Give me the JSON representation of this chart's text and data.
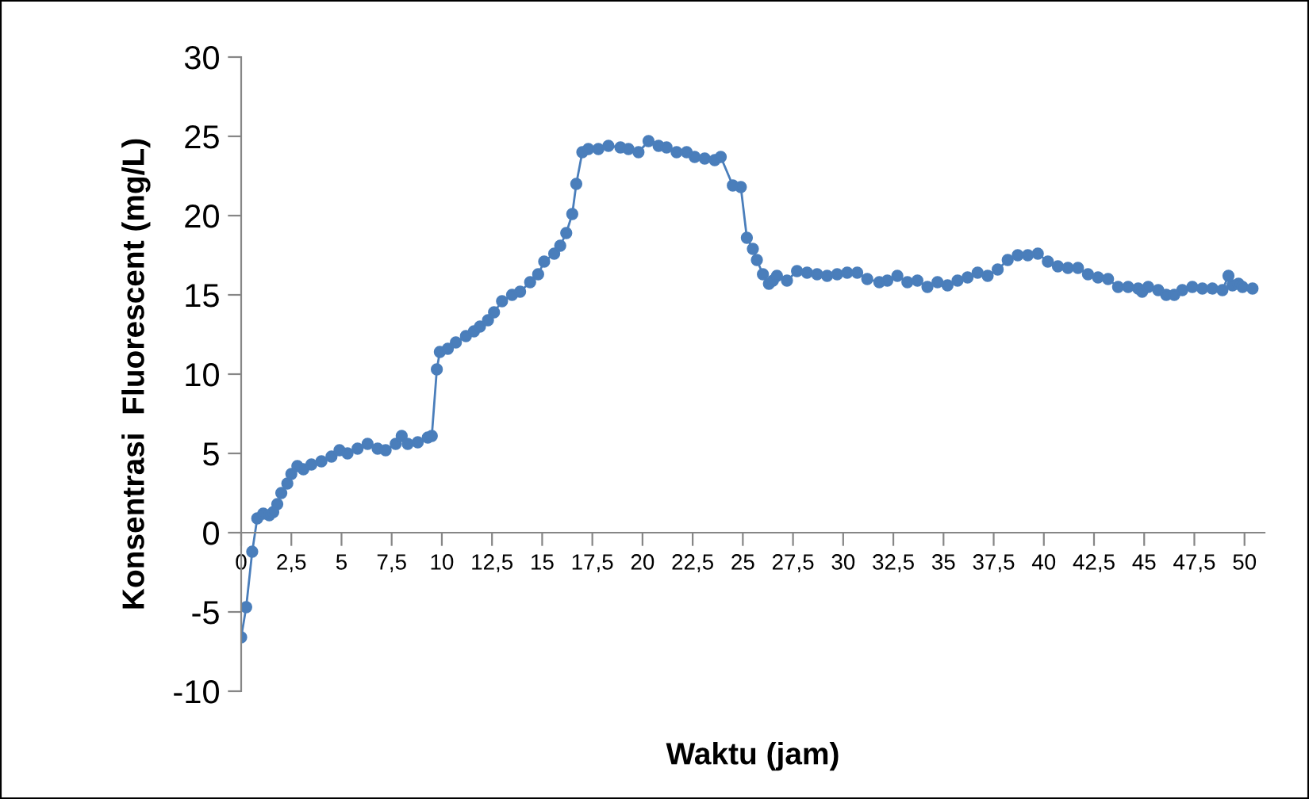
{
  "chart_data": {
    "type": "line",
    "xlabel": "Waktu (jam)",
    "ylabel": "Konsentrasi  Fluorescent (mg/L)",
    "xlim": [
      0,
      51
    ],
    "ylim": [
      -10,
      30
    ],
    "xticks": [
      0,
      {
        "value": 2.5,
        "label": "2,5"
      },
      5,
      {
        "value": 7.5,
        "label": "7,5"
      },
      10,
      {
        "value": 12.5,
        "label": "12,5"
      },
      15,
      {
        "value": 17.5,
        "label": "17,5"
      },
      20,
      {
        "value": 22.5,
        "label": "22,5"
      },
      25,
      {
        "value": 27.5,
        "label": "27,5"
      },
      30,
      {
        "value": 32.5,
        "label": "32,5"
      },
      35,
      {
        "value": 37.5,
        "label": "37,5"
      },
      40,
      {
        "value": 42.5,
        "label": "42,5"
      },
      45,
      {
        "value": 47.5,
        "label": "47,5"
      },
      50
    ],
    "yticks": [
      -10,
      -5,
      0,
      5,
      10,
      15,
      20,
      25,
      30
    ],
    "grid": false,
    "legend": false,
    "marker": "circle",
    "line_style": "solid",
    "series": [
      {
        "color": "#4a7ebb",
        "x": [
          0,
          0.25,
          0.55,
          0.8,
          1.1,
          1.4,
          1.6,
          1.8,
          2.0,
          2.3,
          2.5,
          2.8,
          3.1,
          3.5,
          4.0,
          4.5,
          4.9,
          5.3,
          5.8,
          6.3,
          6.8,
          7.2,
          7.7,
          8.0,
          8.3,
          8.8,
          9.3,
          9.5,
          9.75,
          9.9,
          10.3,
          10.7,
          11.2,
          11.6,
          11.9,
          12.3,
          12.6,
          13.0,
          13.5,
          13.9,
          14.4,
          14.8,
          15.1,
          15.6,
          15.9,
          16.2,
          16.5,
          16.7,
          17.0,
          17.3,
          17.8,
          18.3,
          18.9,
          19.3,
          19.8,
          20.3,
          20.8,
          21.2,
          21.7,
          22.2,
          22.6,
          23.1,
          23.6,
          23.9,
          24.5,
          24.9,
          25.2,
          25.5,
          25.7,
          26.0,
          26.3,
          26.5,
          26.7,
          27.2,
          27.7,
          28.2,
          28.7,
          29.2,
          29.7,
          30.2,
          30.7,
          31.2,
          31.8,
          32.2,
          32.7,
          33.2,
          33.7,
          34.2,
          34.7,
          35.2,
          35.7,
          36.2,
          36.7,
          37.2,
          37.7,
          38.2,
          38.7,
          39.2,
          39.7,
          40.2,
          40.7,
          41.2,
          41.7,
          42.2,
          42.7,
          43.2,
          43.7,
          44.2,
          44.7,
          44.9,
          45.2,
          45.7,
          46.1,
          46.5,
          46.9,
          47.4,
          47.9,
          48.4,
          48.9,
          49.2,
          49.4,
          49.7,
          49.9,
          50.4
        ],
        "values": [
          -6.6,
          -4.7,
          -1.2,
          0.9,
          1.2,
          1.1,
          1.3,
          1.8,
          2.5,
          3.1,
          3.7,
          4.2,
          4.0,
          4.3,
          4.5,
          4.8,
          5.2,
          5.0,
          5.3,
          5.6,
          5.3,
          5.2,
          5.6,
          6.1,
          5.6,
          5.7,
          6.0,
          6.1,
          10.3,
          11.4,
          11.6,
          12.0,
          12.4,
          12.7,
          13.0,
          13.4,
          13.9,
          14.6,
          15.0,
          15.2,
          15.8,
          16.3,
          17.1,
          17.6,
          18.1,
          18.9,
          20.1,
          22.0,
          24.0,
          24.2,
          24.2,
          24.4,
          24.3,
          24.2,
          24.0,
          24.7,
          24.4,
          24.3,
          24.0,
          24.0,
          23.7,
          23.6,
          23.5,
          23.7,
          21.9,
          21.8,
          18.6,
          17.9,
          17.2,
          16.3,
          15.7,
          15.9,
          16.2,
          15.9,
          16.5,
          16.4,
          16.3,
          16.2,
          16.3,
          16.4,
          16.4,
          16.0,
          15.8,
          15.9,
          16.2,
          15.8,
          15.9,
          15.5,
          15.8,
          15.6,
          15.9,
          16.1,
          16.4,
          16.2,
          16.6,
          17.2,
          17.5,
          17.5,
          17.6,
          17.1,
          16.8,
          16.7,
          16.7,
          16.3,
          16.1,
          16.0,
          15.5,
          15.5,
          15.4,
          15.2,
          15.5,
          15.3,
          15.0,
          15.0,
          15.3,
          15.5,
          15.4,
          15.4,
          15.3,
          16.2,
          15.6,
          15.7,
          15.5,
          15.4
        ]
      }
    ]
  }
}
